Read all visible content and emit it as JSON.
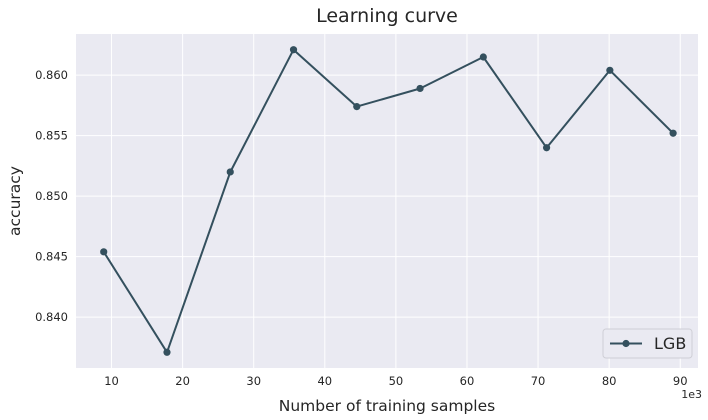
{
  "chart_data": {
    "type": "line",
    "title": "Learning curve",
    "xlabel": "Number of training samples",
    "ylabel": "accuracy",
    "x_offset_label": "1e3",
    "xlim": [
      5,
      92.5
    ],
    "ylim": [
      0.8358,
      0.8634
    ],
    "x_ticks": [
      10,
      20,
      30,
      40,
      50,
      60,
      70,
      80,
      90
    ],
    "y_ticks": [
      "0.840",
      "0.845",
      "0.850",
      "0.855",
      "0.860"
    ],
    "y_tick_values": [
      0.84,
      0.845,
      0.85,
      0.855,
      0.86
    ],
    "grid": true,
    "legend_position": "lower-right",
    "colors": {
      "series": "#34505e",
      "plot_bg": "#eaeaf2",
      "grid": "#ffffff"
    },
    "series": [
      {
        "name": "LGB",
        "marker": "circle",
        "x": [
          8.9,
          17.8,
          26.7,
          35.6,
          44.5,
          53.4,
          62.3,
          71.2,
          80.1,
          89.0
        ],
        "y": [
          0.8454,
          0.8371,
          0.852,
          0.8621,
          0.8574,
          0.8589,
          0.8615,
          0.854,
          0.8604,
          0.8552
        ]
      }
    ]
  }
}
